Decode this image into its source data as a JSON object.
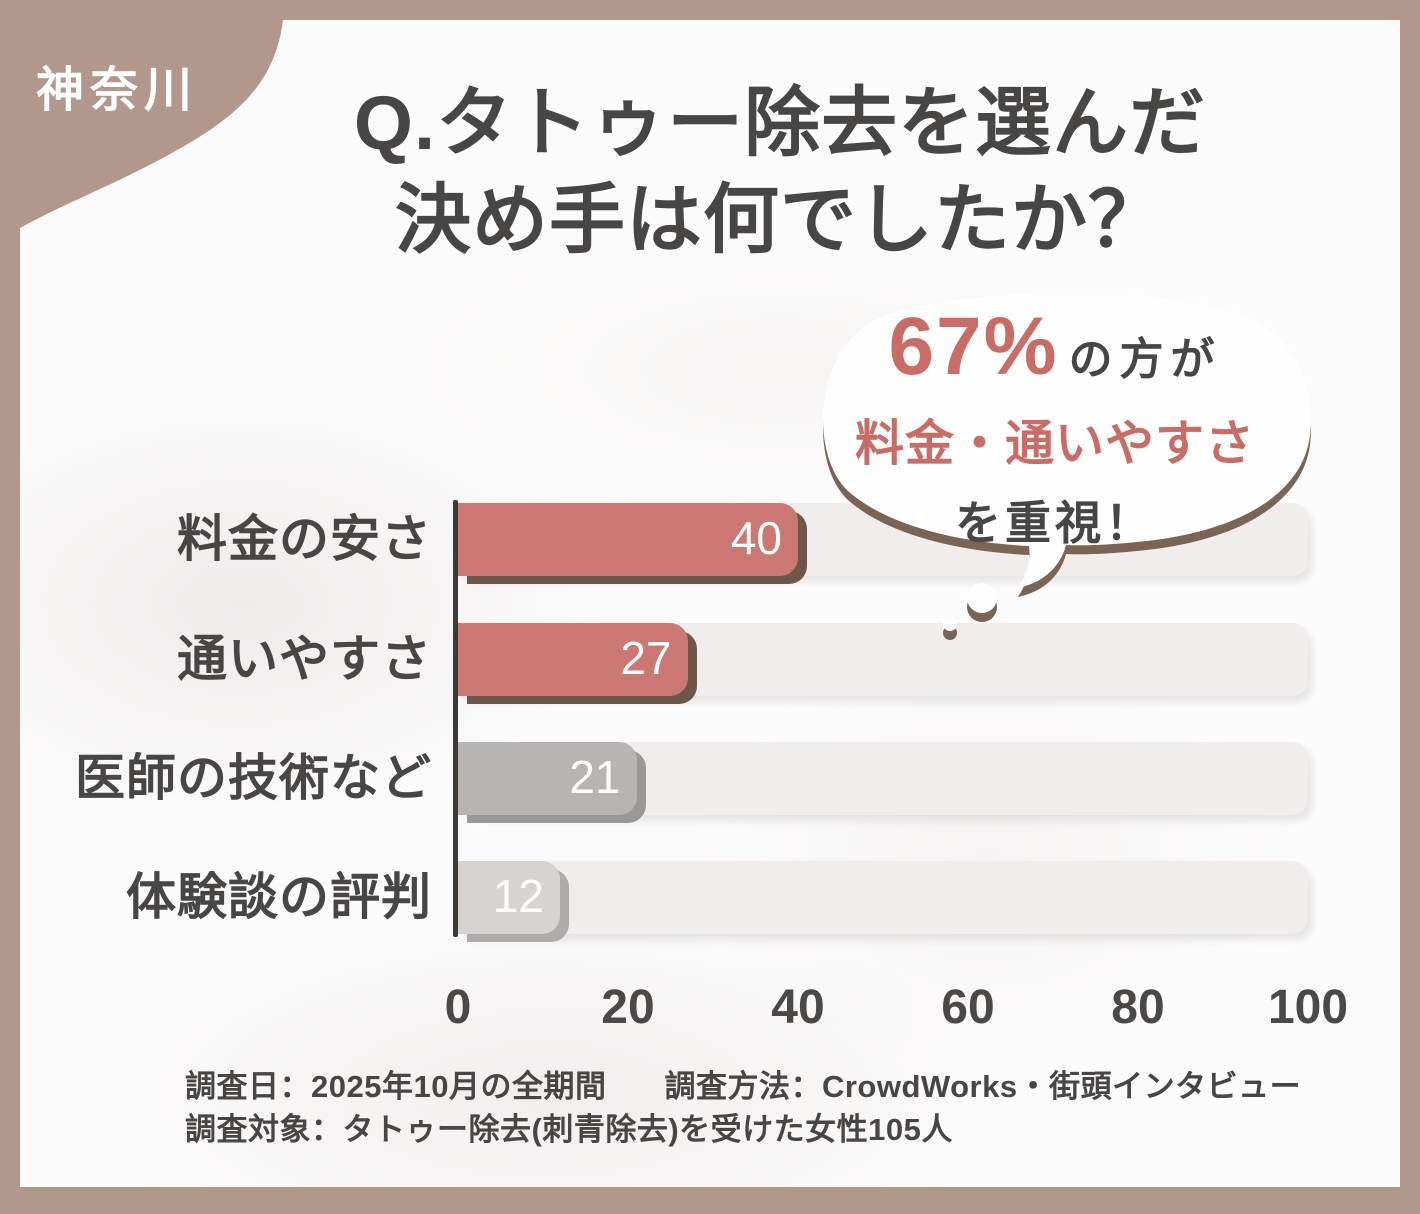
{
  "badge": {
    "label": "神奈川"
  },
  "title": {
    "line1": "Q.タトゥー除去を選んだ",
    "line2": "決め手は何でしたか？"
  },
  "callout": {
    "stat": "67%",
    "stat_suffix": "の方が",
    "highlight": "料金・通いやすさ",
    "emphasis": "を重視！"
  },
  "chart_data": {
    "type": "bar",
    "orientation": "horizontal",
    "title": "タトゥー除去を選んだ決め手",
    "categories": [
      "料金の安さ",
      "通いやすさ",
      "医師の技術など",
      "体験談の評判"
    ],
    "values": [
      40,
      27,
      21,
      12
    ],
    "value_labels": [
      "40",
      "27",
      "21",
      "12"
    ],
    "bar_colors": [
      "#cc7872",
      "#cc7872",
      "#b7b4b2",
      "#d6d3d1"
    ],
    "bar_shadow_colors": [
      "#6d574b",
      "#6d574b",
      "#9a9795",
      "#aeabaa"
    ],
    "xlim": [
      0,
      100
    ],
    "x_ticks": [
      "0",
      "20",
      "40",
      "60",
      "80",
      "100"
    ],
    "grid": false,
    "legend": false,
    "xlabel": "",
    "ylabel": ""
  },
  "footer": {
    "line1_left": "調査日：2025年10月の全期間",
    "line1_right": "調査方法：CrowdWorks・街頭インタビュー",
    "line2": "調査対象：タトゥー除去(刺青除去)を受けた女性105人"
  },
  "colors": {
    "frame": "#b2978d",
    "panel_bg": "#fcfbfb",
    "accent_red": "#cc7872",
    "accent_red_text": "#c96c66",
    "dark_text": "#474645",
    "bar_shadow_brown": "#6d574b",
    "track": "#f0edec",
    "axis": "#3c3a39",
    "white": "#ffffff"
  }
}
